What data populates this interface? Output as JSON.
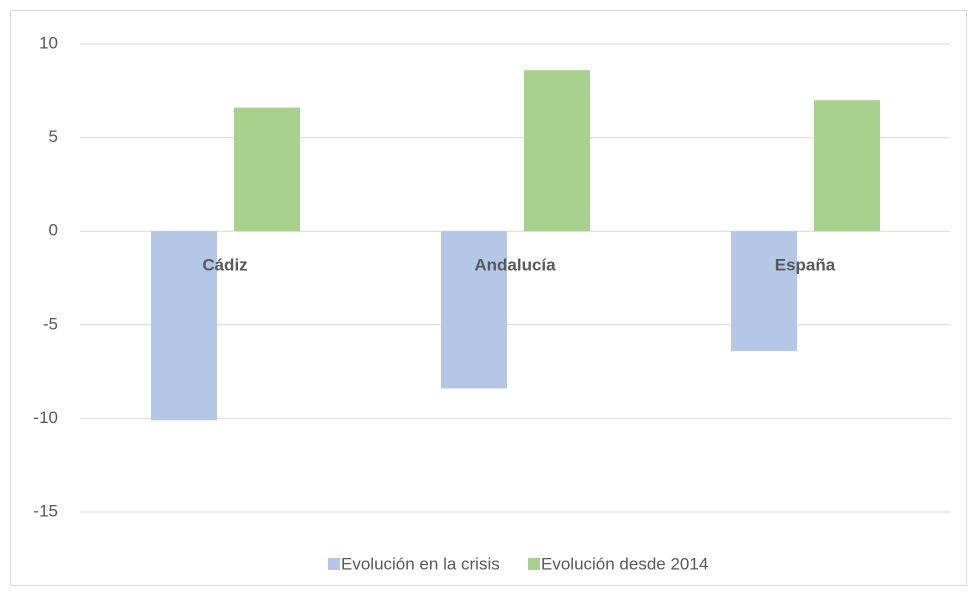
{
  "chart_data": {
    "type": "bar",
    "categories": [
      "Cádiz",
      "Andalucía",
      "España"
    ],
    "series": [
      {
        "name": "Evolución en la crisis",
        "color": "#b4c7e7",
        "values": [
          -10.1,
          -8.4,
          -6.4
        ]
      },
      {
        "name": "Evolución desde 2014",
        "color": "#a9d18e",
        "values": [
          6.6,
          8.6,
          7.0
        ]
      }
    ],
    "ylim": [
      -15,
      10
    ],
    "yticks": [
      -15,
      -10,
      -5,
      0,
      5,
      10
    ],
    "grid": true,
    "legend": "bottom"
  }
}
